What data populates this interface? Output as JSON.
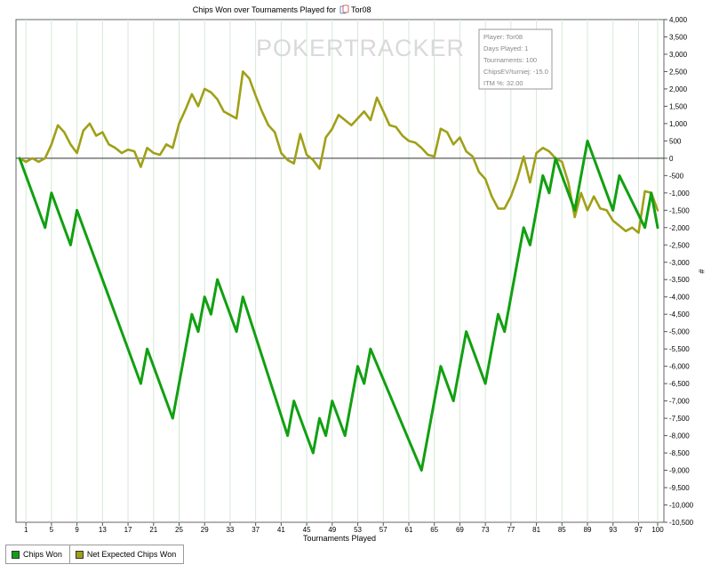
{
  "chart_data": {
    "type": "line",
    "title": "Chips Won over Tournaments Played for",
    "player_name": "Tor08",
    "title_icon": "player-icon",
    "xlabel": "Tournaments Played",
    "ylabel": "#",
    "xlim": [
      0,
      100
    ],
    "ylim": [
      -10500,
      4000
    ],
    "x_ticks": [
      1,
      5,
      9,
      13,
      17,
      21,
      25,
      29,
      33,
      37,
      41,
      45,
      49,
      53,
      57,
      61,
      65,
      69,
      73,
      77,
      81,
      85,
      89,
      93,
      97,
      100
    ],
    "y_ticks": [
      4000,
      3500,
      3000,
      2500,
      2000,
      1500,
      1000,
      500,
      0,
      -500,
      -1000,
      -1500,
      -2000,
      -2500,
      -3000,
      -3500,
      -4000,
      -4500,
      -5000,
      -5500,
      -6000,
      -6500,
      -7000,
      -7500,
      -8000,
      -8500,
      -9000,
      -9500,
      -10000,
      -10500
    ],
    "y_tick_labels": [
      "4,000",
      "3,500",
      "3,000",
      "2,500",
      "2,000",
      "1,500",
      "1,000",
      "500",
      "0",
      "-500",
      "-1,000",
      "-1,500",
      "-2,000",
      "-2,500",
      "-3,000",
      "-3,500",
      "-4,000",
      "-4,500",
      "-5,000",
      "-5,500",
      "-6,000",
      "-6,500",
      "-7,000",
      "-7,500",
      "-8,000",
      "-8,500",
      "-9,000",
      "-9,500",
      "-10,000",
      "-10,500"
    ],
    "grid": "vertical",
    "legend_placement": "bottom-left",
    "watermark": "POKERTRACKER",
    "series": [
      {
        "name": "Chips Won",
        "color": "#11a011",
        "points": [
          [
            0,
            0
          ],
          [
            4,
            -2000
          ],
          [
            5,
            -1000
          ],
          [
            8,
            -2500
          ],
          [
            9,
            -1500
          ],
          [
            19,
            -6500
          ],
          [
            20,
            -5500
          ],
          [
            24,
            -7500
          ],
          [
            27,
            -4500
          ],
          [
            28,
            -5000
          ],
          [
            29,
            -4000
          ],
          [
            30,
            -4500
          ],
          [
            31,
            -3500
          ],
          [
            34,
            -5000
          ],
          [
            35,
            -4000
          ],
          [
            42,
            -8000
          ],
          [
            43,
            -7000
          ],
          [
            46,
            -8500
          ],
          [
            47,
            -7500
          ],
          [
            48,
            -8000
          ],
          [
            49,
            -7000
          ],
          [
            51,
            -8000
          ],
          [
            53,
            -6000
          ],
          [
            54,
            -6500
          ],
          [
            55,
            -5500
          ],
          [
            63,
            -9000
          ],
          [
            66,
            -6000
          ],
          [
            68,
            -7000
          ],
          [
            70,
            -5000
          ],
          [
            73,
            -6500
          ],
          [
            75,
            -4500
          ],
          [
            76,
            -5000
          ],
          [
            79,
            -2000
          ],
          [
            80,
            -2500
          ],
          [
            82,
            -500
          ],
          [
            83,
            -1000
          ],
          [
            84,
            0
          ],
          [
            87,
            -1500
          ],
          [
            89,
            500
          ],
          [
            93,
            -1500
          ],
          [
            94,
            -500
          ],
          [
            98,
            -2000
          ],
          [
            99,
            -1000
          ],
          [
            100,
            -2000
          ]
        ]
      },
      {
        "name": "Net Expected Chips Won",
        "color": "#a0a018",
        "points": [
          [
            0,
            0
          ],
          [
            1,
            -100
          ],
          [
            2,
            0
          ],
          [
            3,
            -100
          ],
          [
            4,
            0
          ],
          [
            5,
            400
          ],
          [
            6,
            950
          ],
          [
            7,
            750
          ],
          [
            8,
            400
          ],
          [
            9,
            150
          ],
          [
            10,
            800
          ],
          [
            11,
            1000
          ],
          [
            12,
            650
          ],
          [
            13,
            750
          ],
          [
            14,
            400
          ],
          [
            15,
            300
          ],
          [
            16,
            150
          ],
          [
            17,
            250
          ],
          [
            18,
            200
          ],
          [
            19,
            -250
          ],
          [
            20,
            300
          ],
          [
            21,
            150
          ],
          [
            22,
            100
          ],
          [
            23,
            400
          ],
          [
            24,
            300
          ],
          [
            25,
            1000
          ],
          [
            26,
            1400
          ],
          [
            27,
            1850
          ],
          [
            28,
            1500
          ],
          [
            29,
            2000
          ],
          [
            30,
            1900
          ],
          [
            31,
            1700
          ],
          [
            32,
            1350
          ],
          [
            33,
            1250
          ],
          [
            34,
            1150
          ],
          [
            35,
            2500
          ],
          [
            36,
            2300
          ],
          [
            37,
            1800
          ],
          [
            38,
            1350
          ],
          [
            39,
            950
          ],
          [
            40,
            750
          ],
          [
            41,
            150
          ],
          [
            42,
            -50
          ],
          [
            43,
            -150
          ],
          [
            44,
            700
          ],
          [
            45,
            100
          ],
          [
            46,
            -50
          ],
          [
            47,
            -300
          ],
          [
            48,
            600
          ],
          [
            49,
            850
          ],
          [
            50,
            1250
          ],
          [
            51,
            1100
          ],
          [
            52,
            950
          ],
          [
            53,
            1150
          ],
          [
            54,
            1350
          ],
          [
            55,
            1100
          ],
          [
            56,
            1750
          ],
          [
            57,
            1350
          ],
          [
            58,
            950
          ],
          [
            59,
            900
          ],
          [
            60,
            650
          ],
          [
            61,
            500
          ],
          [
            62,
            450
          ],
          [
            63,
            300
          ],
          [
            64,
            100
          ],
          [
            65,
            50
          ],
          [
            66,
            850
          ],
          [
            67,
            750
          ],
          [
            68,
            400
          ],
          [
            69,
            600
          ],
          [
            70,
            200
          ],
          [
            71,
            50
          ],
          [
            72,
            -400
          ],
          [
            73,
            -600
          ],
          [
            74,
            -1100
          ],
          [
            75,
            -1450
          ],
          [
            76,
            -1450
          ],
          [
            77,
            -1100
          ],
          [
            78,
            -600
          ],
          [
            79,
            50
          ],
          [
            80,
            -700
          ],
          [
            81,
            150
          ],
          [
            82,
            300
          ],
          [
            83,
            200
          ],
          [
            84,
            0
          ],
          [
            85,
            -100
          ],
          [
            86,
            -700
          ],
          [
            87,
            -1700
          ],
          [
            88,
            -1000
          ],
          [
            89,
            -1500
          ],
          [
            90,
            -1100
          ],
          [
            91,
            -1450
          ],
          [
            92,
            -1500
          ],
          [
            93,
            -1800
          ],
          [
            94,
            -1950
          ],
          [
            95,
            -2100
          ],
          [
            96,
            -2000
          ],
          [
            97,
            -2150
          ],
          [
            98,
            -950
          ],
          [
            99,
            -1000
          ],
          [
            100,
            -1500
          ]
        ]
      }
    ],
    "info_box": [
      "Player: Tor08",
      "Days Played: 1",
      "Tournaments: 100",
      "ChipsEV/turniej: -15.0",
      "ITM %: 32.00"
    ]
  }
}
